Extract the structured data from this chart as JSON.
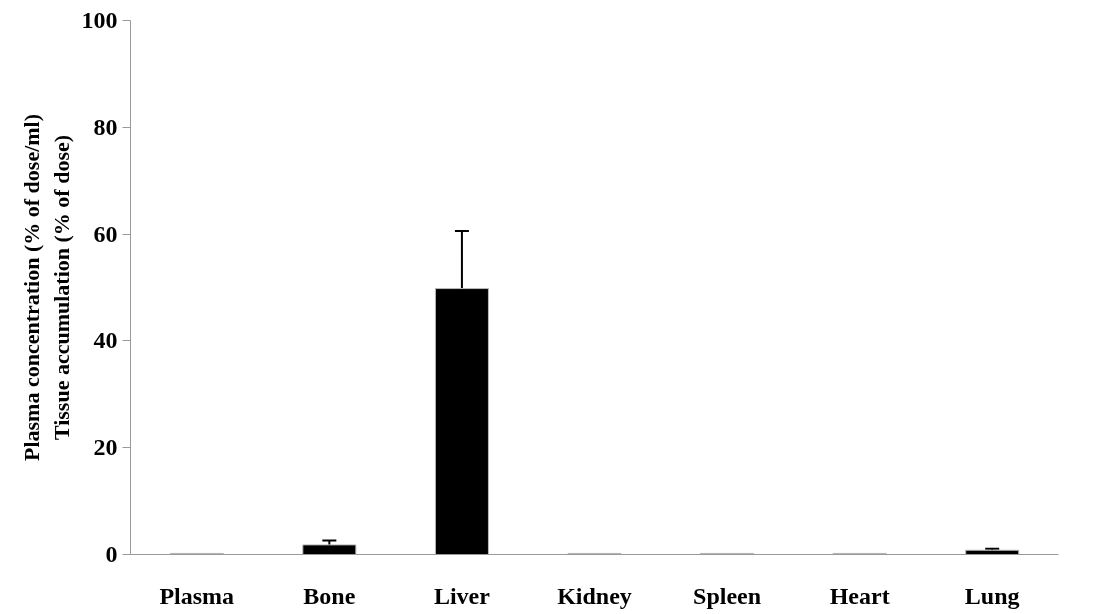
{
  "chart_data": {
    "type": "bar",
    "ylabel": "Plasma concentration (% of dose/ml)\nTissue accumulation (% of dose)",
    "categories": [
      "Plasma",
      "Bone",
      "Liver",
      "Kidney",
      "Spleen",
      "Heart",
      "Lung"
    ],
    "values": [
      0.2,
      1.8,
      49.8,
      0.2,
      0.2,
      0.2,
      0.8
    ],
    "errors": [
      null,
      0.8,
      10.8,
      null,
      null,
      null,
      0.3
    ],
    "color": "#000000",
    "ylim": [
      0,
      100
    ],
    "yticks": [
      0,
      20,
      40,
      60,
      80,
      100
    ],
    "grid": false
  }
}
